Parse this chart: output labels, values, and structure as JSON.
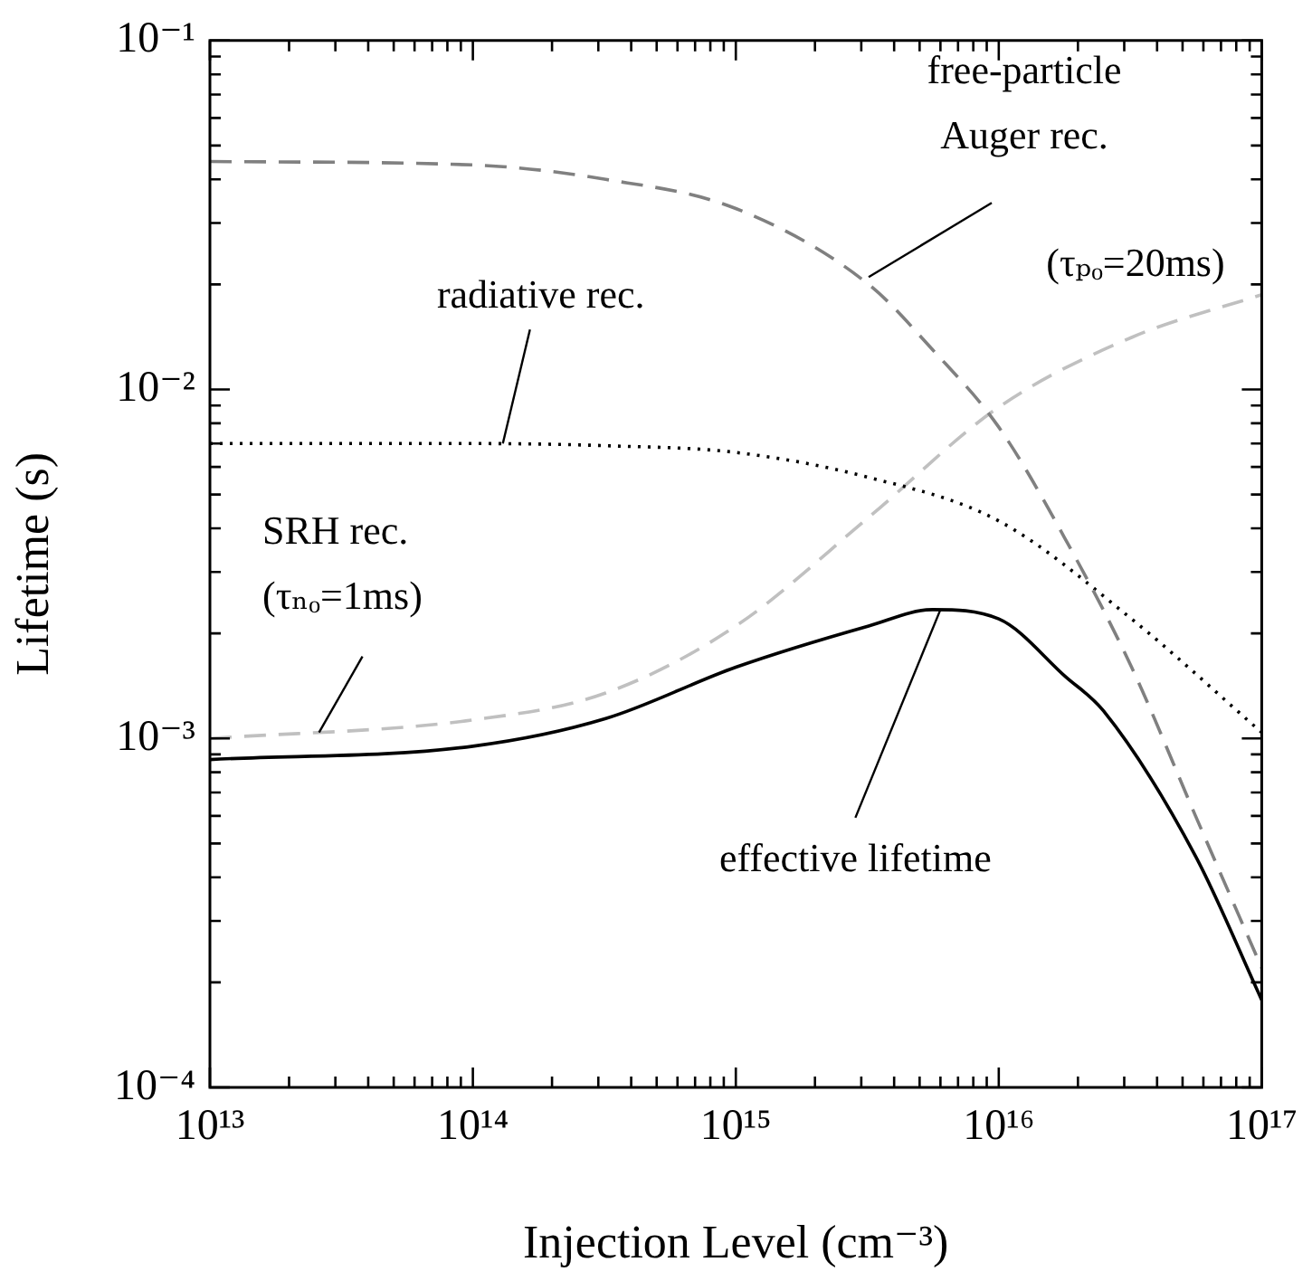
{
  "chart_data": {
    "type": "line",
    "xlabel": "Injection Level (cm⁻³)",
    "ylabel": "Lifetime (s)",
    "log": "xy",
    "grid": false,
    "legend": false,
    "marker": "none",
    "xlim": [
      10000000000000.0,
      1e+17
    ],
    "ylim": [
      0.0001,
      0.1
    ],
    "xticks": [
      {
        "value": 10000000000000.0,
        "label": "10¹³"
      },
      {
        "value": 20000000000000.0,
        "label": null
      },
      {
        "value": 30000000000000.0,
        "label": null
      },
      {
        "value": 40000000000000.0,
        "label": null
      },
      {
        "value": 50000000000000.0,
        "label": null
      },
      {
        "value": 60000000000000.0,
        "label": null
      },
      {
        "value": 70000000000000.0,
        "label": null
      },
      {
        "value": 80000000000000.0,
        "label": null
      },
      {
        "value": 90000000000000.0,
        "label": null
      },
      {
        "value": 100000000000000.0,
        "label": "10¹⁴"
      },
      {
        "value": 200000000000000.0,
        "label": null
      },
      {
        "value": 300000000000000.0,
        "label": null
      },
      {
        "value": 400000000000000.0,
        "label": null
      },
      {
        "value": 500000000000000.0,
        "label": null
      },
      {
        "value": 600000000000000.0,
        "label": null
      },
      {
        "value": 700000000000000.0,
        "label": null
      },
      {
        "value": 800000000000000.0,
        "label": null
      },
      {
        "value": 900000000000000.0,
        "label": null
      },
      {
        "value": 1000000000000000.0,
        "label": "10¹⁵"
      },
      {
        "value": 2000000000000000.0,
        "label": null
      },
      {
        "value": 3000000000000000.0,
        "label": null
      },
      {
        "value": 4000000000000000.0,
        "label": null
      },
      {
        "value": 5000000000000000.0,
        "label": null
      },
      {
        "value": 6000000000000000.0,
        "label": null
      },
      {
        "value": 7000000000000000.0,
        "label": null
      },
      {
        "value": 8000000000000000.0,
        "label": null
      },
      {
        "value": 9000000000000000.0,
        "label": null
      },
      {
        "value": 1e+16,
        "label": "10¹⁶"
      },
      {
        "value": 2e+16,
        "label": null
      },
      {
        "value": 3e+16,
        "label": null
      },
      {
        "value": 4e+16,
        "label": null
      },
      {
        "value": 5e+16,
        "label": null
      },
      {
        "value": 6e+16,
        "label": null
      },
      {
        "value": 7e+16,
        "label": null
      },
      {
        "value": 8e+16,
        "label": null
      },
      {
        "value": 9e+16,
        "label": null
      },
      {
        "value": 1e+17,
        "label": "10¹⁷"
      }
    ],
    "yticks": [
      {
        "value": 0.0001,
        "label": "10⁻⁴"
      },
      {
        "value": 0.0002,
        "label": null
      },
      {
        "value": 0.0003,
        "label": null
      },
      {
        "value": 0.0004,
        "label": null
      },
      {
        "value": 0.0005,
        "label": null
      },
      {
        "value": 0.0006,
        "label": null
      },
      {
        "value": 0.0007,
        "label": null
      },
      {
        "value": 0.0008,
        "label": null
      },
      {
        "value": 0.0009,
        "label": null
      },
      {
        "value": 0.001,
        "label": "10⁻³"
      },
      {
        "value": 0.002,
        "label": null
      },
      {
        "value": 0.003,
        "label": null
      },
      {
        "value": 0.004,
        "label": null
      },
      {
        "value": 0.005,
        "label": null
      },
      {
        "value": 0.006,
        "label": null
      },
      {
        "value": 0.007,
        "label": null
      },
      {
        "value": 0.008,
        "label": null
      },
      {
        "value": 0.009,
        "label": null
      },
      {
        "value": 0.01,
        "label": "10⁻²"
      },
      {
        "value": 0.02,
        "label": null
      },
      {
        "value": 0.03,
        "label": null
      },
      {
        "value": 0.04,
        "label": null
      },
      {
        "value": 0.05,
        "label": null
      },
      {
        "value": 0.06,
        "label": null
      },
      {
        "value": 0.07,
        "label": null
      },
      {
        "value": 0.08,
        "label": null
      },
      {
        "value": 0.09,
        "label": null
      },
      {
        "value": 0.1,
        "label": "10⁻¹"
      }
    ],
    "series": [
      {
        "color": "#808080",
        "line_style": "dashed",
        "x": [
          10000000000000.0,
          100000000000000.0,
          320000000000000.0,
          1000000000000000.0,
          3200000000000000.0,
          5600000000000000.0,
          1e+16,
          1.8e+16,
          3.2e+16,
          5.6e+16,
          1e+17
        ],
        "values": [
          0.045,
          0.044,
          0.04,
          0.033,
          0.02,
          0.013,
          0.0078,
          0.0037,
          0.0016,
          0.0006,
          0.00022
        ]
      },
      {
        "color": "#000000",
        "line_style": "dotted",
        "x": [
          10000000000000.0,
          100000000000000.0,
          320000000000000.0,
          1000000000000000.0,
          3200000000000000.0,
          1e+16,
          3.2e+16,
          1e+17
        ],
        "values": [
          0.007,
          0.007,
          0.0069,
          0.0066,
          0.0056,
          0.0042,
          0.0022,
          0.00104
        ]
      },
      {
        "color": "#c0c0c0",
        "line_style": "dashed",
        "x": [
          10000000000000.0,
          100000000000000.0,
          320000000000000.0,
          1000000000000000.0,
          3200000000000000.0,
          1e+16,
          3.2e+16,
          1e+17
        ],
        "values": [
          0.001,
          0.00113,
          0.00135,
          0.0021,
          0.0043,
          0.0089,
          0.0141,
          0.0187
        ]
      },
      {
        "color": "#000000",
        "line_style": "solid",
        "x": [
          10000000000000.0,
          100000000000000.0,
          320000000000000.0,
          1000000000000000.0,
          3200000000000000.0,
          5600000000000000.0,
          1e+16,
          1.8e+16,
          2.5e+16,
          5.6e+16,
          1e+17
        ],
        "values": [
          0.00087,
          0.00095,
          0.00114,
          0.0016,
          0.0021,
          0.00234,
          0.0022,
          0.0015,
          0.0012,
          0.00046,
          0.000178
        ]
      }
    ],
    "annotations": [
      {
        "text": "free-particle\nAuger rec.",
        "x": 3200000000000000.0,
        "y": 0.021
      },
      "(τₚₒ=20ms)",
      {
        "text": "radiative rec.",
        "x": 130000000000000.0,
        "y": 0.007
      },
      {
        "text": "SRH rec.\n(τₙₒ=1ms)",
        "x": 26000000000000.0,
        "y": 0.00104
      },
      {
        "text": "effective lifetime",
        "x": 6000000000000000.0,
        "y": 0.00234
      }
    ]
  }
}
